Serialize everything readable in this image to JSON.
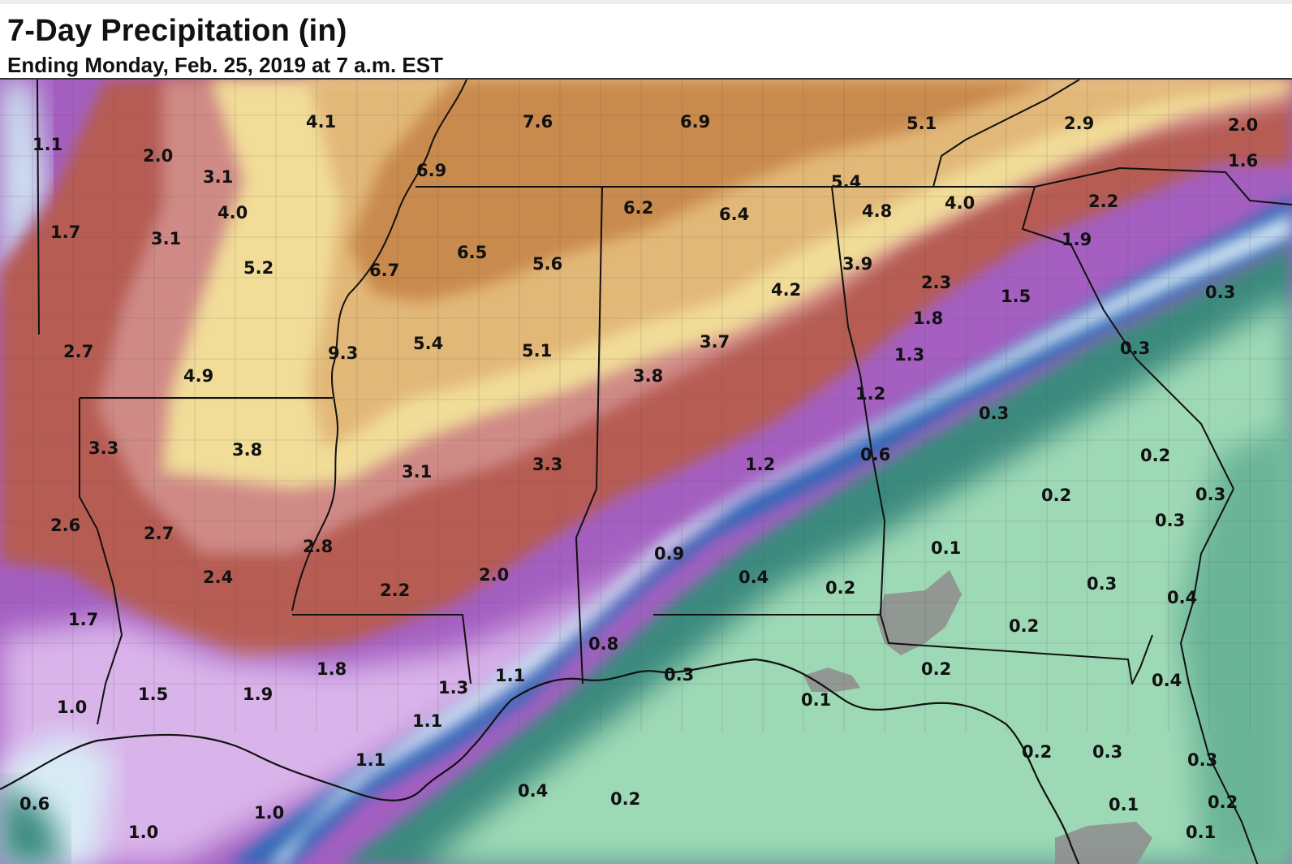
{
  "header": {
    "title": "7-Day Precipitation (in)",
    "subtitle": "Ending Monday, Feb. 25, 2019 at 7 a.m. EST"
  },
  "legend_colors": {
    "very_heavy": "#c98a4e",
    "heavy_tan": "#e2b878",
    "pale_yellow": "#f1dc98",
    "red_band": "#b65c52",
    "pink_band": "#cf8a86",
    "purple_band": "#a45fc1",
    "lavender_band": "#d9b4ea",
    "blue_band": "#2f67b6",
    "light_blue": "#d8ecf6",
    "teal_band": "#3a8a7e",
    "mint_green": "#9ed9b6",
    "gray_area": "#8f8f8f"
  },
  "labels": [
    {
      "text": "1.1"
    },
    {
      "text": "2.0"
    },
    {
      "text": "3.1"
    },
    {
      "text": "4.1"
    },
    {
      "text": "7.6"
    },
    {
      "text": "6.9"
    },
    {
      "text": "5.1"
    },
    {
      "text": "2.9"
    },
    {
      "text": "2.0"
    },
    {
      "text": "1.6"
    },
    {
      "text": "6.9"
    },
    {
      "text": "5.4"
    },
    {
      "text": "1.7"
    },
    {
      "text": "4.0"
    },
    {
      "text": "3.1"
    },
    {
      "text": "6.2"
    },
    {
      "text": "6.4"
    },
    {
      "text": "4.8"
    },
    {
      "text": "4.0"
    },
    {
      "text": "2.2"
    },
    {
      "text": "1.9"
    },
    {
      "text": "5.2"
    },
    {
      "text": "6.7"
    },
    {
      "text": "6.5"
    },
    {
      "text": "5.6"
    },
    {
      "text": "3.9"
    },
    {
      "text": "4.2"
    },
    {
      "text": "2.3"
    },
    {
      "text": "1.5"
    },
    {
      "text": "0.3"
    },
    {
      "text": "1.8"
    },
    {
      "text": "2.7"
    },
    {
      "text": "4.9"
    },
    {
      "text": "9.3"
    },
    {
      "text": "5.4"
    },
    {
      "text": "5.1"
    },
    {
      "text": "3.7"
    },
    {
      "text": "3.8"
    },
    {
      "text": "1.3"
    },
    {
      "text": "0.3"
    },
    {
      "text": "1.2"
    },
    {
      "text": "0.3"
    },
    {
      "text": "3.3"
    },
    {
      "text": "3.8"
    },
    {
      "text": "3.1"
    },
    {
      "text": "3.3"
    },
    {
      "text": "1.2"
    },
    {
      "text": "0.6"
    },
    {
      "text": "0.2"
    },
    {
      "text": "2.6"
    },
    {
      "text": "2.7"
    },
    {
      "text": "0.2"
    },
    {
      "text": "0.3"
    },
    {
      "text": "0.3"
    },
    {
      "text": "2.8"
    },
    {
      "text": "0.9"
    },
    {
      "text": "0.1"
    },
    {
      "text": "2.4"
    },
    {
      "text": "2.2"
    },
    {
      "text": "2.0"
    },
    {
      "text": "0.4"
    },
    {
      "text": "0.2"
    },
    {
      "text": "0.3"
    },
    {
      "text": "0.4"
    },
    {
      "text": "1.7"
    },
    {
      "text": "0.8"
    },
    {
      "text": "0.2"
    },
    {
      "text": "1.8"
    },
    {
      "text": "1.3"
    },
    {
      "text": "1.1"
    },
    {
      "text": "0.3"
    },
    {
      "text": "0.2"
    },
    {
      "text": "0.4"
    },
    {
      "text": "1.5"
    },
    {
      "text": "1.9"
    },
    {
      "text": "1.0"
    },
    {
      "text": "1.1"
    },
    {
      "text": "0.1"
    },
    {
      "text": "1.1"
    },
    {
      "text": "0.2"
    },
    {
      "text": "0.3"
    },
    {
      "text": "0.3"
    },
    {
      "text": "0.6"
    },
    {
      "text": "1.0"
    },
    {
      "text": "0.4"
    },
    {
      "text": "0.2"
    },
    {
      "text": "0.1"
    },
    {
      "text": "0.2"
    },
    {
      "text": "1.0"
    },
    {
      "text": "0.1"
    }
  ]
}
